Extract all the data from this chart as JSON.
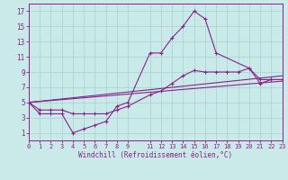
{
  "xlabel": "Windchill (Refroidissement éolien,°C)",
  "bg_color": "#caeaea",
  "line_color": "#882288",
  "grid_color": "#a8d8d0",
  "xmin": 0,
  "xmax": 23,
  "ymin": 0,
  "ymax": 18,
  "yticks": [
    1,
    3,
    5,
    7,
    9,
    11,
    13,
    15,
    17
  ],
  "xticks": [
    0,
    1,
    2,
    3,
    4,
    5,
    6,
    7,
    8,
    9,
    11,
    12,
    13,
    14,
    15,
    16,
    17,
    18,
    19,
    20,
    21,
    22,
    23
  ],
  "series1_x": [
    0,
    1,
    2,
    3,
    4,
    5,
    6,
    7,
    8,
    9,
    11,
    12,
    13,
    14,
    15,
    16,
    17,
    20,
    21,
    22,
    23
  ],
  "series1_y": [
    5,
    3.5,
    3.5,
    3.5,
    1,
    1.5,
    2,
    2.5,
    4.5,
    5,
    11.5,
    11.5,
    13.5,
    15,
    17,
    16,
    11.5,
    9.5,
    7.5,
    8,
    8
  ],
  "series2_x": [
    0,
    1,
    2,
    3,
    4,
    5,
    6,
    7,
    8,
    9,
    11,
    12,
    13,
    14,
    15,
    16,
    17,
    18,
    19,
    20,
    21,
    22,
    23
  ],
  "series2_y": [
    5,
    4,
    4,
    4,
    3.5,
    3.5,
    3.5,
    3.5,
    4,
    4.5,
    6,
    6.5,
    7.5,
    8.5,
    9.2,
    9,
    9,
    9,
    9,
    9.5,
    8,
    8,
    8
  ],
  "series3_x": [
    0,
    23
  ],
  "series3_y": [
    5,
    7.8
  ],
  "series4_x": [
    0,
    23
  ],
  "series4_y": [
    5,
    8.5
  ]
}
